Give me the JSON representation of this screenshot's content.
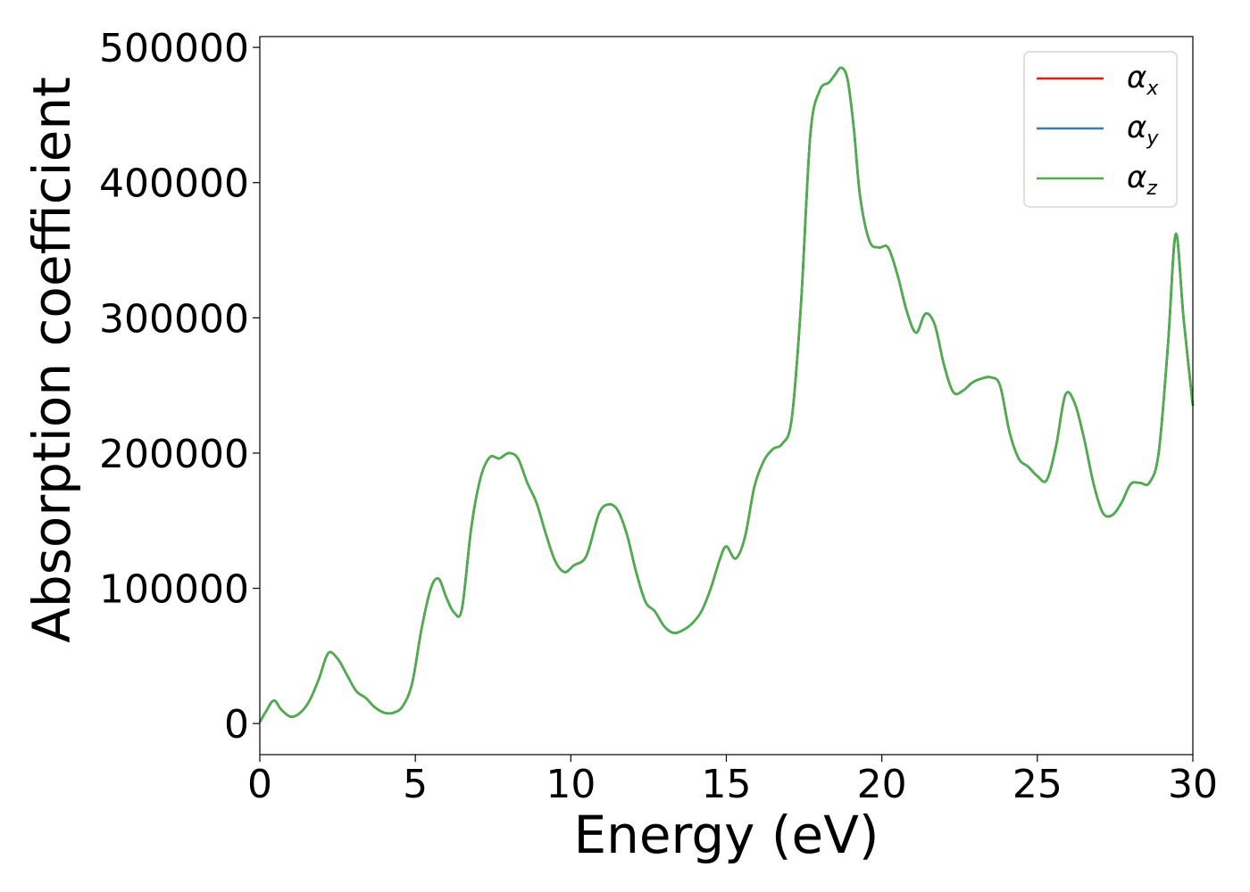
{
  "chart_data": {
    "type": "line",
    "title": "",
    "xlabel": "Energy (eV)",
    "ylabel": "Absorption coefficient",
    "xlim": [
      0,
      30
    ],
    "ylim": [
      -23000,
      508000
    ],
    "xticks": [
      "0",
      "5",
      "10",
      "15",
      "20",
      "25",
      "30"
    ],
    "yticks": [
      "0",
      "100000",
      "200000",
      "300000",
      "400000",
      "500000"
    ],
    "grid": false,
    "legend_position": "top-right",
    "series": [
      {
        "name": "α",
        "name_subscript": "x",
        "color": "#e41a1c",
        "x": [
          0,
          0.2,
          0.45,
          0.7,
          1.0,
          1.3,
          1.6,
          1.9,
          2.2,
          2.5,
          2.8,
          3.1,
          3.4,
          3.7,
          4.0,
          4.3,
          4.6,
          4.9,
          5.2,
          5.5,
          5.75,
          6.0,
          6.25,
          6.5,
          6.8,
          7.1,
          7.4,
          7.7,
          8.0,
          8.3,
          8.6,
          8.9,
          9.2,
          9.5,
          9.8,
          10.1,
          10.5,
          10.9,
          11.2,
          11.5,
          11.8,
          12.1,
          12.4,
          12.7,
          13.0,
          13.3,
          13.6,
          13.9,
          14.2,
          14.5,
          14.8,
          15.0,
          15.3,
          15.6,
          15.9,
          16.2,
          16.5,
          16.8,
          17.1,
          17.4,
          17.7,
          18.0,
          18.3,
          18.5,
          18.7,
          18.9,
          19.1,
          19.3,
          19.6,
          19.9,
          20.2,
          20.5,
          20.8,
          21.1,
          21.4,
          21.7,
          22.0,
          22.3,
          22.6,
          22.9,
          23.2,
          23.5,
          23.8,
          24.1,
          24.4,
          24.7,
          25.0,
          25.3,
          25.6,
          25.9,
          26.2,
          26.5,
          26.8,
          27.1,
          27.4,
          27.7,
          28.0,
          28.3,
          28.6,
          28.9,
          29.2,
          29.45,
          29.7,
          30.0
        ],
        "y": [
          1000,
          9000,
          17000,
          10000,
          5000,
          8000,
          17000,
          33000,
          52000,
          48000,
          36000,
          24000,
          19000,
          12000,
          8000,
          8000,
          13000,
          30000,
          70000,
          100000,
          107000,
          93000,
          82000,
          85000,
          145000,
          182000,
          197000,
          196000,
          200000,
          196000,
          178000,
          163000,
          140000,
          120000,
          112000,
          117000,
          124000,
          155000,
          162000,
          158000,
          140000,
          112000,
          90000,
          83000,
          72000,
          67000,
          69000,
          74000,
          83000,
          100000,
          122000,
          131000,
          122000,
          138000,
          175000,
          194000,
          203000,
          207000,
          225000,
          310000,
          435000,
          468000,
          474000,
          480000,
          485000,
          476000,
          440000,
          390000,
          357000,
          352000,
          352000,
          332000,
          305000,
          289000,
          303000,
          295000,
          265000,
          245000,
          246000,
          252000,
          255000,
          256000,
          250000,
          216000,
          196000,
          190000,
          183000,
          180000,
          205000,
          243000,
          237000,
          211000,
          178000,
          156000,
          154000,
          163000,
          177000,
          178000,
          178000,
          200000,
          280000,
          362000,
          300000,
          235000
        ]
      },
      {
        "name": "α",
        "name_subscript": "y",
        "color": "#377eb8",
        "x": [
          0,
          0.2,
          0.45,
          0.7,
          1.0,
          1.3,
          1.6,
          1.9,
          2.2,
          2.5,
          2.8,
          3.1,
          3.4,
          3.7,
          4.0,
          4.3,
          4.6,
          4.9,
          5.2,
          5.5,
          5.75,
          6.0,
          6.25,
          6.5,
          6.8,
          7.1,
          7.4,
          7.7,
          8.0,
          8.3,
          8.6,
          8.9,
          9.2,
          9.5,
          9.8,
          10.1,
          10.5,
          10.9,
          11.2,
          11.5,
          11.8,
          12.1,
          12.4,
          12.7,
          13.0,
          13.3,
          13.6,
          13.9,
          14.2,
          14.5,
          14.8,
          15.0,
          15.3,
          15.6,
          15.9,
          16.2,
          16.5,
          16.8,
          17.1,
          17.4,
          17.7,
          18.0,
          18.3,
          18.5,
          18.7,
          18.9,
          19.1,
          19.3,
          19.6,
          19.9,
          20.2,
          20.5,
          20.8,
          21.1,
          21.4,
          21.7,
          22.0,
          22.3,
          22.6,
          22.9,
          23.2,
          23.5,
          23.8,
          24.1,
          24.4,
          24.7,
          25.0,
          25.3,
          25.6,
          25.9,
          26.2,
          26.5,
          26.8,
          27.1,
          27.4,
          27.7,
          28.0,
          28.3,
          28.6,
          28.9,
          29.2,
          29.45,
          29.7,
          30.0
        ],
        "y": [
          1000,
          9000,
          17000,
          10000,
          5000,
          8000,
          17000,
          33000,
          52000,
          48000,
          36000,
          24000,
          19000,
          12000,
          8000,
          8000,
          13000,
          30000,
          70000,
          100000,
          107000,
          93000,
          82000,
          85000,
          145000,
          182000,
          197000,
          196000,
          200000,
          196000,
          178000,
          163000,
          140000,
          120000,
          112000,
          117000,
          124000,
          155000,
          162000,
          158000,
          140000,
          112000,
          90000,
          83000,
          72000,
          67000,
          69000,
          74000,
          83000,
          100000,
          122000,
          131000,
          122000,
          138000,
          175000,
          194000,
          203000,
          207000,
          225000,
          310000,
          435000,
          468000,
          474000,
          480000,
          485000,
          476000,
          440000,
          390000,
          357000,
          352000,
          352000,
          332000,
          305000,
          289000,
          303000,
          295000,
          265000,
          245000,
          246000,
          252000,
          255000,
          256000,
          250000,
          216000,
          196000,
          190000,
          183000,
          180000,
          205000,
          243000,
          237000,
          211000,
          178000,
          156000,
          154000,
          163000,
          177000,
          178000,
          178000,
          200000,
          280000,
          362000,
          300000,
          235000
        ]
      },
      {
        "name": "α",
        "name_subscript": "z",
        "color": "#4daf4a",
        "x": [
          0,
          0.2,
          0.45,
          0.7,
          1.0,
          1.3,
          1.6,
          1.9,
          2.2,
          2.5,
          2.8,
          3.1,
          3.4,
          3.7,
          4.0,
          4.3,
          4.6,
          4.9,
          5.2,
          5.5,
          5.75,
          6.0,
          6.25,
          6.5,
          6.8,
          7.1,
          7.4,
          7.7,
          8.0,
          8.3,
          8.6,
          8.9,
          9.2,
          9.5,
          9.8,
          10.1,
          10.5,
          10.9,
          11.2,
          11.5,
          11.8,
          12.1,
          12.4,
          12.7,
          13.0,
          13.3,
          13.6,
          13.9,
          14.2,
          14.5,
          14.8,
          15.0,
          15.3,
          15.6,
          15.9,
          16.2,
          16.5,
          16.8,
          17.1,
          17.4,
          17.7,
          18.0,
          18.3,
          18.5,
          18.7,
          18.9,
          19.1,
          19.3,
          19.6,
          19.9,
          20.2,
          20.5,
          20.8,
          21.1,
          21.4,
          21.7,
          22.0,
          22.3,
          22.6,
          22.9,
          23.2,
          23.5,
          23.8,
          24.1,
          24.4,
          24.7,
          25.0,
          25.3,
          25.6,
          25.9,
          26.2,
          26.5,
          26.8,
          27.1,
          27.4,
          27.7,
          28.0,
          28.3,
          28.6,
          28.9,
          29.2,
          29.45,
          29.7,
          30.0
        ],
        "y": [
          1000,
          9000,
          17000,
          10000,
          5000,
          8000,
          17000,
          33000,
          52000,
          48000,
          36000,
          24000,
          19000,
          12000,
          8000,
          8000,
          13000,
          30000,
          70000,
          100000,
          107000,
          93000,
          82000,
          85000,
          145000,
          182000,
          197000,
          196000,
          200000,
          196000,
          178000,
          163000,
          140000,
          120000,
          112000,
          117000,
          124000,
          155000,
          162000,
          158000,
          140000,
          112000,
          90000,
          83000,
          72000,
          67000,
          69000,
          74000,
          83000,
          100000,
          122000,
          131000,
          122000,
          138000,
          175000,
          194000,
          203000,
          207000,
          225000,
          310000,
          435000,
          468000,
          474000,
          480000,
          485000,
          476000,
          440000,
          390000,
          357000,
          352000,
          352000,
          332000,
          305000,
          289000,
          303000,
          295000,
          265000,
          245000,
          246000,
          252000,
          255000,
          256000,
          250000,
          216000,
          196000,
          190000,
          183000,
          180000,
          205000,
          243000,
          237000,
          211000,
          178000,
          156000,
          154000,
          163000,
          177000,
          178000,
          178000,
          200000,
          280000,
          362000,
          300000,
          235000
        ]
      }
    ]
  }
}
